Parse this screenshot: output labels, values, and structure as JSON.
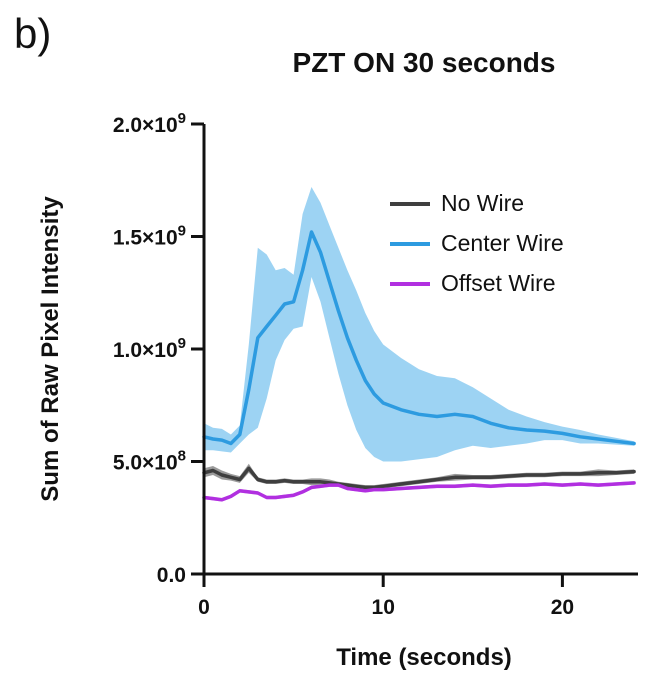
{
  "panel_label": "b)",
  "chart_data": {
    "type": "line",
    "title": "PZT ON 30 seconds",
    "xlabel": "Time (seconds)",
    "ylabel": "Sum of Raw Pixel Intensity",
    "xlim": [
      0,
      25
    ],
    "ylim": [
      0,
      2000000000
    ],
    "x_ticks": [
      0,
      10,
      20
    ],
    "x_tick_labels": [
      "0",
      "10",
      "20"
    ],
    "y_ticks": [
      0,
      500000000,
      1000000000,
      1500000000,
      2000000000
    ],
    "y_tick_labels": [
      {
        "mantissa": "0.0",
        "exp": ""
      },
      {
        "mantissa": "5.0×10",
        "exp": "8"
      },
      {
        "mantissa": "1.0×10",
        "exp": "9"
      },
      {
        "mantissa": "1.5×10",
        "exp": "9"
      },
      {
        "mantissa": "2.0×10",
        "exp": "9"
      }
    ],
    "grid": false,
    "legend_position": "top-right",
    "series": [
      {
        "name": "No Wire",
        "color": "#3f3f3f",
        "band_color": "#8a8a8a",
        "x": [
          0,
          0.5,
          1,
          1.5,
          2,
          2.5,
          3,
          3.5,
          4,
          4.5,
          5,
          5.5,
          6,
          6.5,
          7,
          7.5,
          8,
          8.5,
          9,
          9.5,
          10,
          11,
          12,
          13,
          14,
          15,
          16,
          17,
          18,
          19,
          20,
          21,
          22,
          23,
          24
        ],
        "values": [
          450000000,
          460000000,
          440000000,
          430000000,
          420000000,
          470000000,
          420000000,
          410000000,
          410000000,
          415000000,
          410000000,
          410000000,
          410000000,
          410000000,
          405000000,
          400000000,
          395000000,
          390000000,
          385000000,
          385000000,
          390000000,
          400000000,
          410000000,
          420000000,
          430000000,
          430000000,
          430000000,
          435000000,
          440000000,
          440000000,
          445000000,
          445000000,
          450000000,
          450000000,
          455000000
        ],
        "band": [
          20000000,
          20000000,
          20000000,
          15000000,
          15000000,
          20000000,
          10000000,
          10000000,
          10000000,
          10000000,
          10000000,
          10000000,
          15000000,
          15000000,
          15000000,
          10000000,
          10000000,
          10000000,
          10000000,
          10000000,
          10000000,
          10000000,
          10000000,
          10000000,
          15000000,
          10000000,
          10000000,
          10000000,
          10000000,
          10000000,
          10000000,
          10000000,
          15000000,
          10000000,
          10000000
        ]
      },
      {
        "name": "Center Wire",
        "color": "#2d9be0",
        "band_color": "#8ccbf1",
        "x": [
          0,
          0.5,
          1,
          1.5,
          2,
          2.5,
          3,
          3.5,
          4,
          4.5,
          5,
          5.5,
          6,
          6.5,
          7,
          7.5,
          8,
          8.5,
          9,
          9.5,
          10,
          11,
          12,
          13,
          14,
          15,
          16,
          17,
          18,
          19,
          20,
          21,
          22,
          23,
          24
        ],
        "values": [
          610000000,
          600000000,
          595000000,
          580000000,
          620000000,
          820000000,
          1050000000,
          1100000000,
          1150000000,
          1200000000,
          1210000000,
          1350000000,
          1520000000,
          1430000000,
          1300000000,
          1170000000,
          1050000000,
          950000000,
          860000000,
          800000000,
          760000000,
          730000000,
          710000000,
          700000000,
          710000000,
          700000000,
          670000000,
          650000000,
          640000000,
          635000000,
          625000000,
          610000000,
          600000000,
          590000000,
          580000000
        ],
        "band": [
          60000000,
          50000000,
          50000000,
          40000000,
          40000000,
          200000000,
          400000000,
          320000000,
          200000000,
          160000000,
          120000000,
          250000000,
          200000000,
          220000000,
          250000000,
          280000000,
          300000000,
          310000000,
          300000000,
          280000000,
          260000000,
          230000000,
          200000000,
          180000000,
          160000000,
          130000000,
          110000000,
          80000000,
          60000000,
          40000000,
          30000000,
          30000000,
          20000000,
          15000000,
          10000000
        ]
      },
      {
        "name": "Offset Wire",
        "color": "#b12fe0",
        "band_color": "#d28ff0",
        "x": [
          0,
          0.5,
          1,
          1.5,
          2,
          2.5,
          3,
          3.5,
          4,
          4.5,
          5,
          5.5,
          6,
          6.5,
          7,
          7.5,
          8,
          8.5,
          9,
          9.5,
          10,
          11,
          12,
          13,
          14,
          15,
          16,
          17,
          18,
          19,
          20,
          21,
          22,
          23,
          24
        ],
        "values": [
          340000000,
          335000000,
          330000000,
          345000000,
          370000000,
          365000000,
          360000000,
          340000000,
          340000000,
          345000000,
          350000000,
          365000000,
          385000000,
          390000000,
          395000000,
          395000000,
          380000000,
          375000000,
          370000000,
          375000000,
          375000000,
          380000000,
          385000000,
          390000000,
          390000000,
          395000000,
          390000000,
          395000000,
          395000000,
          400000000,
          395000000,
          400000000,
          395000000,
          400000000,
          405000000
        ],
        "band": [
          8000000,
          8000000,
          8000000,
          8000000,
          8000000,
          8000000,
          8000000,
          8000000,
          8000000,
          8000000,
          8000000,
          8000000,
          8000000,
          8000000,
          8000000,
          8000000,
          8000000,
          8000000,
          8000000,
          8000000,
          8000000,
          8000000,
          8000000,
          8000000,
          8000000,
          8000000,
          8000000,
          8000000,
          8000000,
          8000000,
          8000000,
          8000000,
          8000000,
          8000000,
          8000000
        ]
      }
    ]
  }
}
